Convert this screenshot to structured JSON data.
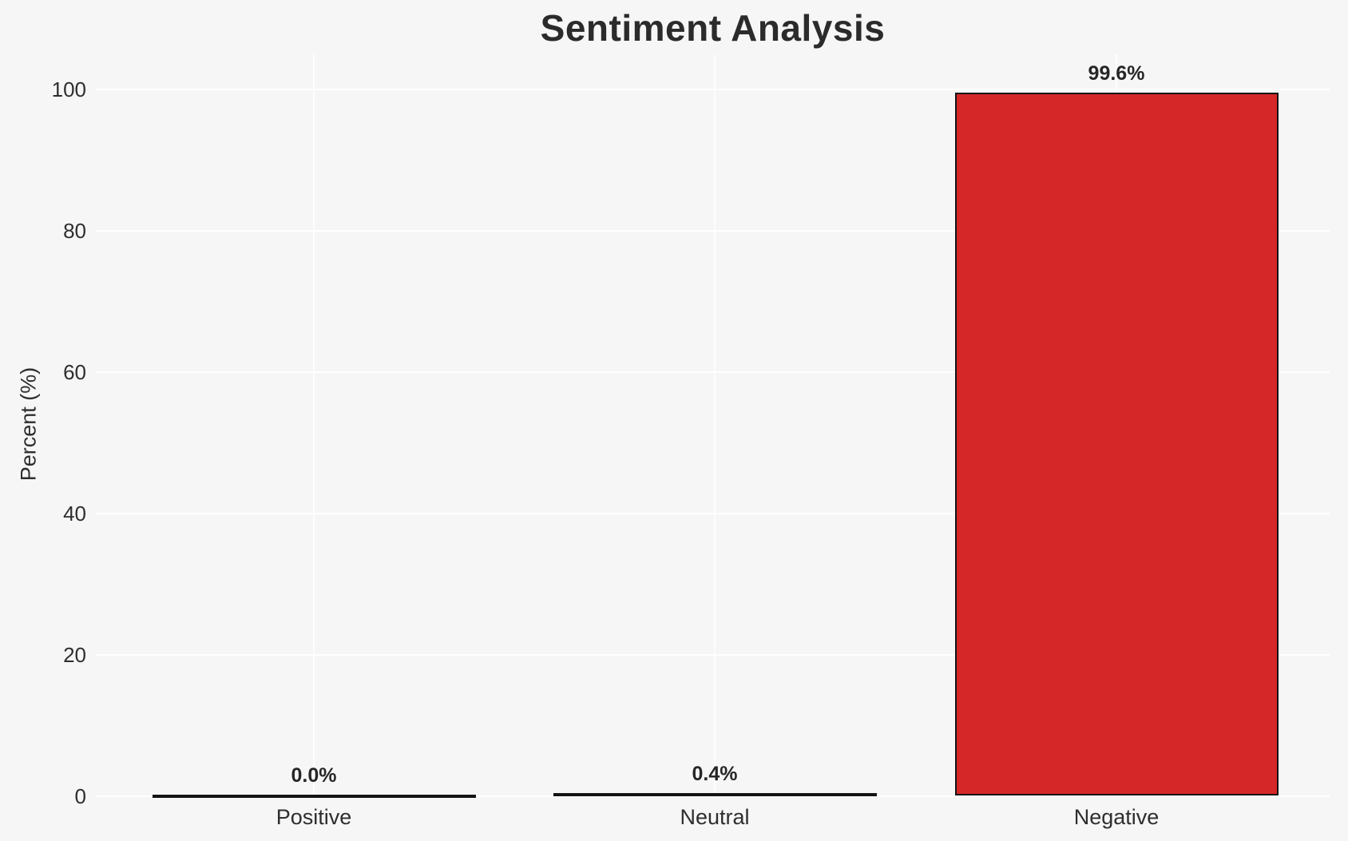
{
  "chart_data": {
    "type": "bar",
    "title": "Sentiment Analysis",
    "xlabel": "",
    "ylabel": "Percent (%)",
    "categories": [
      "Positive",
      "Neutral",
      "Negative"
    ],
    "values": [
      0.0,
      0.4,
      99.6
    ],
    "value_labels": [
      "0.0%",
      "0.4%",
      "99.6%"
    ],
    "yticks": [
      0,
      20,
      40,
      60,
      80,
      100
    ],
    "ylim": [
      0,
      105
    ],
    "grid": "on",
    "legend": "none",
    "bar_fill_color": "#d62728",
    "bar_edge_color": "#141414",
    "background_color": "#f6f6f6",
    "grid_color": "#ffffff",
    "text_color": "#2b2b2b"
  }
}
